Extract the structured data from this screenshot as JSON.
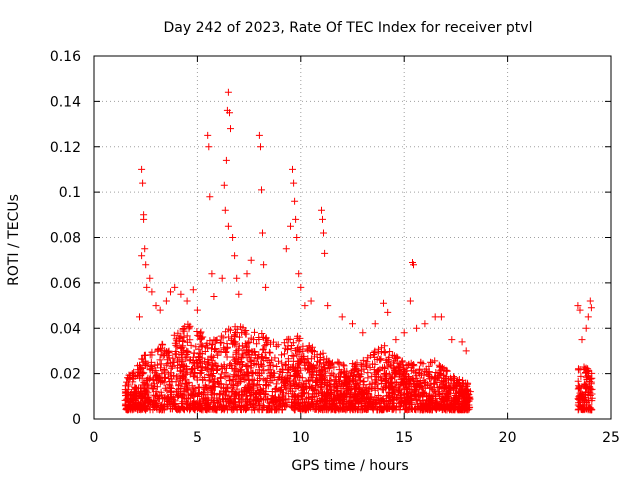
{
  "chart_data": {
    "type": "scatter",
    "title": "Day 242 of 2023, Rate Of TEC Index for receiver ptvl",
    "xlabel": "GPS time / hours",
    "ylabel": "ROTI / TECUs",
    "xlim": [
      0,
      25
    ],
    "ylim": [
      0,
      0.16
    ],
    "xticks": [
      0,
      5,
      10,
      15,
      20,
      25
    ],
    "xtick_labels": [
      "0",
      "5",
      "10",
      "15",
      "20",
      "25"
    ],
    "yticks": [
      0,
      0.02,
      0.04,
      0.06,
      0.08,
      0.1,
      0.12,
      0.14,
      0.16
    ],
    "ytick_labels": [
      "0",
      "0.02",
      "0.04",
      "0.06",
      "0.08",
      "0.1",
      "0.12",
      "0.14",
      "0.16"
    ],
    "grid": true,
    "marker": "plus",
    "color": "#ff0000",
    "series": [
      {
        "name": "ROTI",
        "points": [
          [
            2.3,
            0.11
          ],
          [
            2.35,
            0.104
          ],
          [
            2.4,
            0.09
          ],
          [
            2.4,
            0.088
          ],
          [
            2.45,
            0.075
          ],
          [
            2.3,
            0.072
          ],
          [
            2.5,
            0.068
          ],
          [
            2.55,
            0.058
          ],
          [
            2.7,
            0.062
          ],
          [
            2.8,
            0.056
          ],
          [
            3.0,
            0.05
          ],
          [
            2.2,
            0.045
          ],
          [
            3.2,
            0.048
          ],
          [
            3.5,
            0.052
          ],
          [
            3.7,
            0.056
          ],
          [
            3.9,
            0.058
          ],
          [
            4.2,
            0.055
          ],
          [
            4.5,
            0.052
          ],
          [
            4.8,
            0.057
          ],
          [
            5.0,
            0.048
          ],
          [
            5.5,
            0.125
          ],
          [
            5.55,
            0.12
          ],
          [
            5.6,
            0.098
          ],
          [
            5.7,
            0.064
          ],
          [
            5.8,
            0.054
          ],
          [
            6.2,
            0.062
          ],
          [
            6.3,
            0.103
          ],
          [
            6.35,
            0.092
          ],
          [
            6.4,
            0.114
          ],
          [
            6.45,
            0.136
          ],
          [
            6.5,
            0.144
          ],
          [
            6.55,
            0.135
          ],
          [
            6.6,
            0.128
          ],
          [
            6.5,
            0.085
          ],
          [
            6.7,
            0.08
          ],
          [
            6.8,
            0.072
          ],
          [
            6.9,
            0.062
          ],
          [
            7.0,
            0.055
          ],
          [
            7.4,
            0.064
          ],
          [
            7.6,
            0.07
          ],
          [
            8.0,
            0.125
          ],
          [
            8.05,
            0.12
          ],
          [
            8.1,
            0.101
          ],
          [
            8.15,
            0.082
          ],
          [
            8.2,
            0.068
          ],
          [
            8.3,
            0.058
          ],
          [
            9.3,
            0.075
          ],
          [
            9.5,
            0.085
          ],
          [
            9.6,
            0.11
          ],
          [
            9.65,
            0.104
          ],
          [
            9.7,
            0.096
          ],
          [
            9.75,
            0.088
          ],
          [
            9.8,
            0.08
          ],
          [
            9.9,
            0.064
          ],
          [
            10.0,
            0.058
          ],
          [
            10.2,
            0.05
          ],
          [
            10.5,
            0.052
          ],
          [
            11.0,
            0.092
          ],
          [
            11.05,
            0.088
          ],
          [
            11.1,
            0.082
          ],
          [
            11.15,
            0.073
          ],
          [
            11.3,
            0.05
          ],
          [
            12.0,
            0.045
          ],
          [
            12.5,
            0.042
          ],
          [
            13.0,
            0.038
          ],
          [
            13.6,
            0.042
          ],
          [
            14.0,
            0.051
          ],
          [
            14.2,
            0.047
          ],
          [
            14.6,
            0.035
          ],
          [
            15.0,
            0.038
          ],
          [
            15.3,
            0.052
          ],
          [
            15.4,
            0.069
          ],
          [
            15.45,
            0.068
          ],
          [
            15.6,
            0.04
          ],
          [
            16.0,
            0.042
          ],
          [
            16.5,
            0.045
          ],
          [
            16.8,
            0.045
          ],
          [
            17.3,
            0.035
          ],
          [
            17.8,
            0.034
          ],
          [
            18.0,
            0.03
          ],
          [
            23.4,
            0.05
          ],
          [
            23.5,
            0.048
          ],
          [
            23.6,
            0.035
          ],
          [
            24.0,
            0.052
          ],
          [
            24.05,
            0.049
          ],
          [
            23.9,
            0.045
          ],
          [
            23.8,
            0.04
          ]
        ]
      }
    ],
    "dense_bands": [
      {
        "x0": 1.5,
        "x1": 18.2,
        "base": 0.004,
        "envelope": [
          [
            1.5,
            0.018
          ],
          [
            2.0,
            0.022
          ],
          [
            2.5,
            0.03
          ],
          [
            3.0,
            0.033
          ],
          [
            3.5,
            0.034
          ],
          [
            4.0,
            0.038
          ],
          [
            4.5,
            0.042
          ],
          [
            5.0,
            0.04
          ],
          [
            5.5,
            0.036
          ],
          [
            6.0,
            0.035
          ],
          [
            6.5,
            0.04
          ],
          [
            7.0,
            0.042
          ],
          [
            7.5,
            0.038
          ],
          [
            8.0,
            0.04
          ],
          [
            8.5,
            0.036
          ],
          [
            9.0,
            0.034
          ],
          [
            9.5,
            0.038
          ],
          [
            10.0,
            0.036
          ],
          [
            10.5,
            0.032
          ],
          [
            11.0,
            0.03
          ],
          [
            11.5,
            0.026
          ],
          [
            12.0,
            0.026
          ],
          [
            12.5,
            0.025
          ],
          [
            13.0,
            0.026
          ],
          [
            13.5,
            0.03
          ],
          [
            14.0,
            0.034
          ],
          [
            14.5,
            0.028
          ],
          [
            15.0,
            0.026
          ],
          [
            15.5,
            0.024
          ],
          [
            16.0,
            0.026
          ],
          [
            16.5,
            0.026
          ],
          [
            17.0,
            0.022
          ],
          [
            17.5,
            0.018
          ],
          [
            18.2,
            0.016
          ]
        ]
      },
      {
        "x0": 23.4,
        "x1": 24.1,
        "base": 0.004,
        "envelope": [
          [
            23.4,
            0.022
          ],
          [
            23.7,
            0.024
          ],
          [
            24.1,
            0.02
          ]
        ]
      }
    ]
  }
}
